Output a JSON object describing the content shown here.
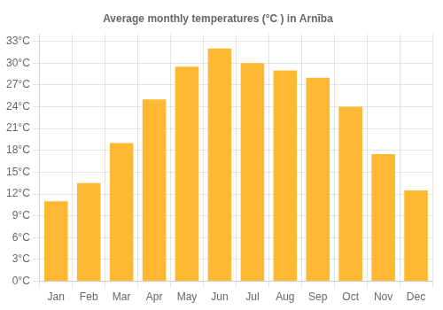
{
  "chart_data": {
    "type": "bar",
    "title": "Average monthly temperatures (°C ) in Arnība",
    "categories": [
      "Jan",
      "Feb",
      "Mar",
      "Apr",
      "May",
      "Jun",
      "Jul",
      "Aug",
      "Sep",
      "Oct",
      "Nov",
      "Dec"
    ],
    "values": [
      11.0,
      13.5,
      19.0,
      25.0,
      29.5,
      32.0,
      30.0,
      29.0,
      28.0,
      24.0,
      17.5,
      12.5
    ],
    "color": "#FFB833",
    "ylim": [
      0,
      34
    ],
    "yticks": [
      {
        "value": 0,
        "label": "0°C"
      },
      {
        "value": 3,
        "label": "3°C"
      },
      {
        "value": 6,
        "label": "6°C"
      },
      {
        "value": 9,
        "label": "9°C"
      },
      {
        "value": 12,
        "label": "12°C"
      },
      {
        "value": 15,
        "label": "15°C"
      },
      {
        "value": 18,
        "label": "18°C"
      },
      {
        "value": 21,
        "label": "21°C"
      },
      {
        "value": 24,
        "label": "24°C"
      },
      {
        "value": 27,
        "label": "27°C"
      },
      {
        "value": 30,
        "label": "30°C"
      },
      {
        "value": 33,
        "label": "33°C"
      }
    ],
    "grid": true
  }
}
